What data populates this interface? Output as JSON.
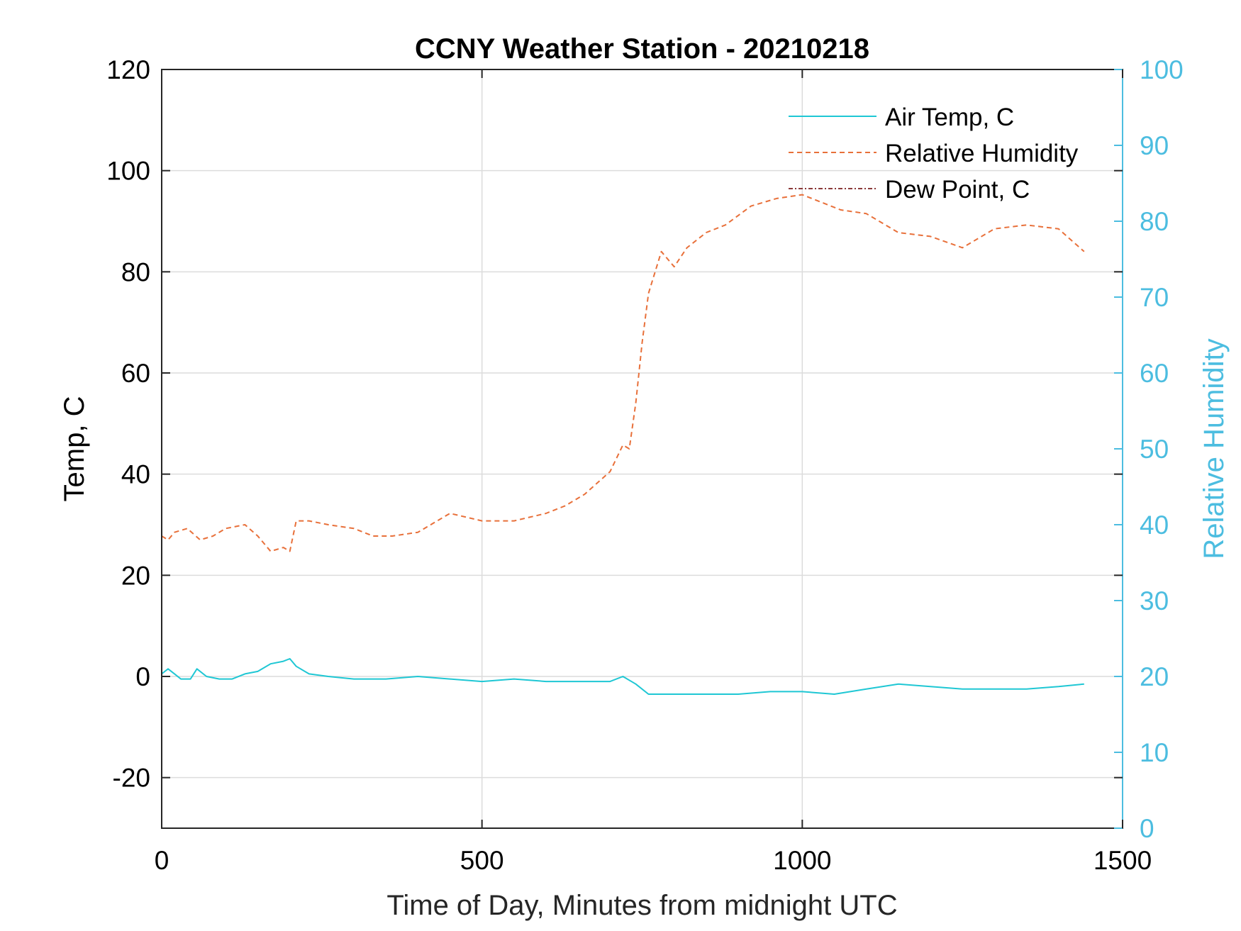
{
  "chart_data": {
    "type": "line",
    "title": "CCNY Weather Station - 20210218",
    "xlabel": "Time of Day, Minutes from midnight UTC",
    "ylabel_left": "Temp, C",
    "ylabel_right": "Relative Humidity",
    "xlim": [
      0,
      1500
    ],
    "ylim_left": [
      -30,
      120
    ],
    "ylim_right": [
      0,
      100
    ],
    "xticks": [
      0,
      500,
      1000,
      1500
    ],
    "yticks_left": [
      -20,
      0,
      20,
      40,
      60,
      80,
      100,
      120
    ],
    "yticks_right": [
      0,
      10,
      20,
      30,
      40,
      50,
      60,
      70,
      80,
      90,
      100
    ],
    "grid": true,
    "legend_position": "top-right",
    "colors": {
      "air_temp": "#1fc7d4",
      "relative_humidity": "#e8703a",
      "dew_point": "#7a1f1f",
      "right_axis": "#4cbde0",
      "grid": "#dcdcdc"
    },
    "series": [
      {
        "name": "Air Temp, C",
        "axis": "left",
        "style": "solid",
        "x": [
          0,
          10,
          20,
          30,
          45,
          55,
          70,
          90,
          110,
          130,
          150,
          170,
          190,
          200,
          210,
          230,
          260,
          300,
          350,
          400,
          450,
          500,
          550,
          600,
          650,
          700,
          720,
          740,
          760,
          780,
          800,
          850,
          900,
          950,
          1000,
          1050,
          1100,
          1150,
          1200,
          1250,
          1300,
          1350,
          1400,
          1440
        ],
        "y": [
          0.5,
          1.5,
          0.5,
          -0.5,
          -0.5,
          1.5,
          0.0,
          -0.5,
          -0.5,
          0.5,
          1.0,
          2.5,
          3.0,
          3.5,
          2.0,
          0.5,
          0.0,
          -0.5,
          -0.5,
          0.0,
          -0.5,
          -1.0,
          -0.5,
          -1.0,
          -1.0,
          -1.0,
          0.0,
          -1.5,
          -3.5,
          -3.5,
          -3.5,
          -3.5,
          -3.5,
          -3.0,
          -3.0,
          -3.5,
          -2.5,
          -1.5,
          -2.0,
          -2.5,
          -2.5,
          -2.5,
          -2.0,
          -1.5
        ]
      },
      {
        "name": "Relative Humidity",
        "axis": "right",
        "style": "dashed",
        "x": [
          0,
          10,
          20,
          40,
          60,
          80,
          100,
          130,
          150,
          170,
          190,
          200,
          210,
          230,
          260,
          300,
          330,
          360,
          400,
          450,
          500,
          550,
          600,
          630,
          660,
          700,
          720,
          730,
          740,
          750,
          760,
          780,
          800,
          820,
          850,
          880,
          920,
          960,
          1000,
          1030,
          1060,
          1100,
          1150,
          1200,
          1250,
          1300,
          1350,
          1400,
          1420,
          1440
        ],
        "y": [
          38.5,
          38.0,
          39.0,
          39.5,
          38.0,
          38.5,
          39.5,
          40.0,
          38.5,
          36.5,
          37.0,
          36.5,
          40.5,
          40.5,
          40.0,
          39.5,
          38.5,
          38.5,
          39.0,
          41.5,
          40.5,
          40.5,
          41.5,
          42.5,
          44.0,
          47.0,
          50.5,
          50.0,
          56.0,
          64.0,
          70.5,
          76.0,
          74.0,
          76.5,
          78.5,
          79.5,
          82.0,
          83.0,
          83.5,
          82.5,
          81.5,
          81.0,
          78.5,
          78.0,
          76.5,
          79.0,
          79.5,
          79.0,
          77.5,
          76.0
        ]
      },
      {
        "name": "Dew Point, C",
        "axis": "left",
        "style": "dash-dot",
        "x": [],
        "y": []
      }
    ]
  }
}
